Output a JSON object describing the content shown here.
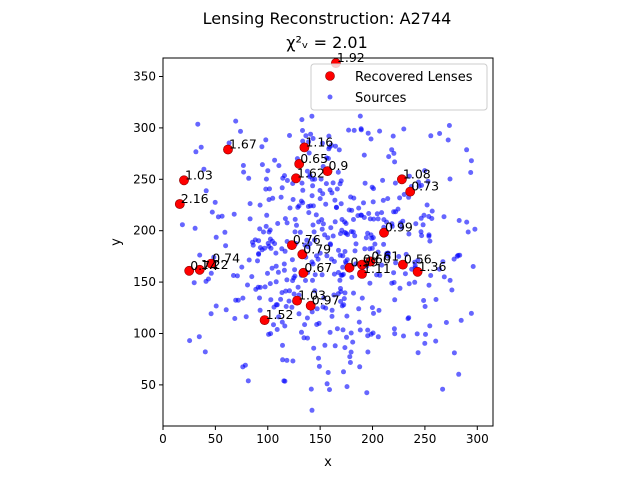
{
  "chart_data": {
    "type": "scatter",
    "title_line1": "Lensing Reconstruction: A2744",
    "title_line2": "χ²ᵥ = 2.01",
    "xlabel": "x",
    "ylabel": "y",
    "xlim": [
      0,
      315
    ],
    "ylim": [
      10,
      368
    ],
    "xticks": [
      0,
      50,
      100,
      150,
      200,
      250,
      300
    ],
    "yticks": [
      50,
      100,
      150,
      200,
      250,
      300,
      350
    ],
    "grid": false,
    "legend_placement": "top-right",
    "series": [
      {
        "name": "Recovered Lenses",
        "color": "#ff0000",
        "edgecolor": "#8b0000",
        "points": [
          {
            "x": 20,
            "y": 249,
            "label": "1.03"
          },
          {
            "x": 16,
            "y": 226,
            "label": "2.16"
          },
          {
            "x": 62,
            "y": 279,
            "label": "1.67"
          },
          {
            "x": 135,
            "y": 281,
            "label": "1.16"
          },
          {
            "x": 130,
            "y": 265,
            "label": "0.65"
          },
          {
            "x": 157,
            "y": 258,
            "label": "0.9"
          },
          {
            "x": 127,
            "y": 251,
            "label": "1.62"
          },
          {
            "x": 228,
            "y": 250,
            "label": "1.08"
          },
          {
            "x": 236,
            "y": 238,
            "label": "0.73"
          },
          {
            "x": 211,
            "y": 198,
            "label": "0.99"
          },
          {
            "x": 123,
            "y": 186,
            "label": "0.76"
          },
          {
            "x": 133,
            "y": 177,
            "label": "0.79"
          },
          {
            "x": 134,
            "y": 159,
            "label": "0.67"
          },
          {
            "x": 25,
            "y": 161,
            "label": "0.74"
          },
          {
            "x": 35,
            "y": 162,
            "label": "1.22"
          },
          {
            "x": 46,
            "y": 168,
            "label": "0.74"
          },
          {
            "x": 178,
            "y": 164,
            "label": "0.59"
          },
          {
            "x": 190,
            "y": 167,
            "label": "0.60"
          },
          {
            "x": 198,
            "y": 170,
            "label": "0.61"
          },
          {
            "x": 190,
            "y": 158,
            "label": "1.11"
          },
          {
            "x": 229,
            "y": 167,
            "label": "0.56"
          },
          {
            "x": 243,
            "y": 160,
            "label": "1.36"
          },
          {
            "x": 128,
            "y": 132,
            "label": "1.03"
          },
          {
            "x": 141,
            "y": 127,
            "label": "0.97"
          },
          {
            "x": 97,
            "y": 113,
            "label": "1.52"
          },
          {
            "x": 165,
            "y": 363,
            "label": "1.92"
          }
        ]
      },
      {
        "name": "Sources",
        "color": "#0000ff",
        "alpha": 0.6,
        "count": 500,
        "x_center": 160,
        "y_center": 185,
        "x_spread": 62,
        "y_spread": 68,
        "x_range": [
          15,
          305
        ],
        "y_range": [
          25,
          315
        ]
      }
    ]
  }
}
